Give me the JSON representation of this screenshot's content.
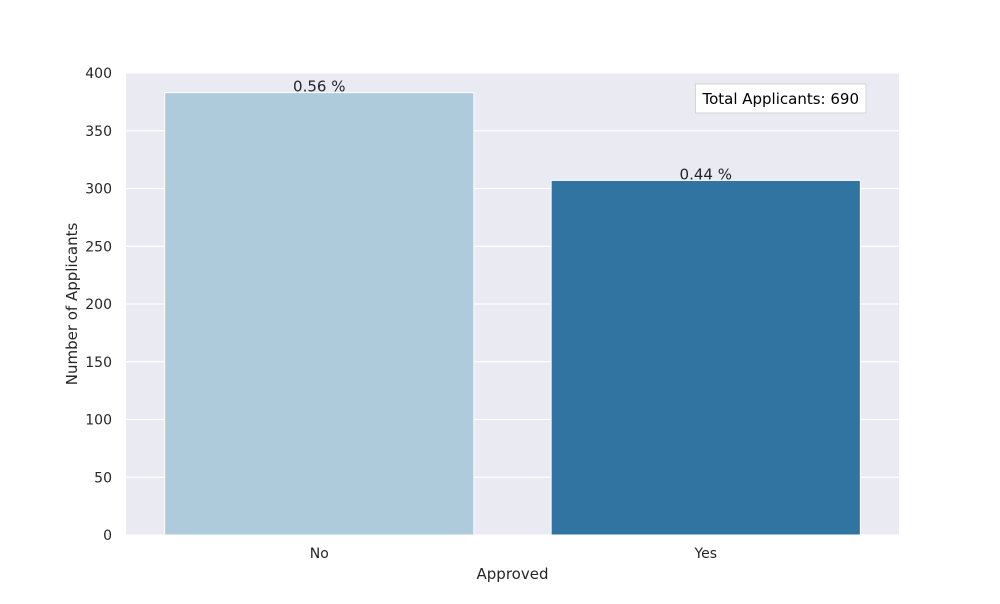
{
  "chart_data": {
    "type": "bar",
    "title": "",
    "xlabel": "Approved",
    "ylabel": "Number of Applicants",
    "categories": [
      "No",
      "Yes"
    ],
    "values": [
      383,
      307
    ],
    "bar_labels": [
      "0.56 %",
      "0.44 %"
    ],
    "bar_colors": [
      "#aecbdb",
      "#3274a1"
    ],
    "ylim": [
      0,
      400
    ],
    "yticks": [
      0,
      50,
      100,
      150,
      200,
      250,
      300,
      350,
      400
    ],
    "grid": true,
    "legend": null,
    "annotation": {
      "text": "Total Applicants: 690",
      "placement": "top-right"
    },
    "colors": {
      "plot_background": "#eaeaf2",
      "grid": "#ffffff",
      "text": "#262626"
    }
  }
}
